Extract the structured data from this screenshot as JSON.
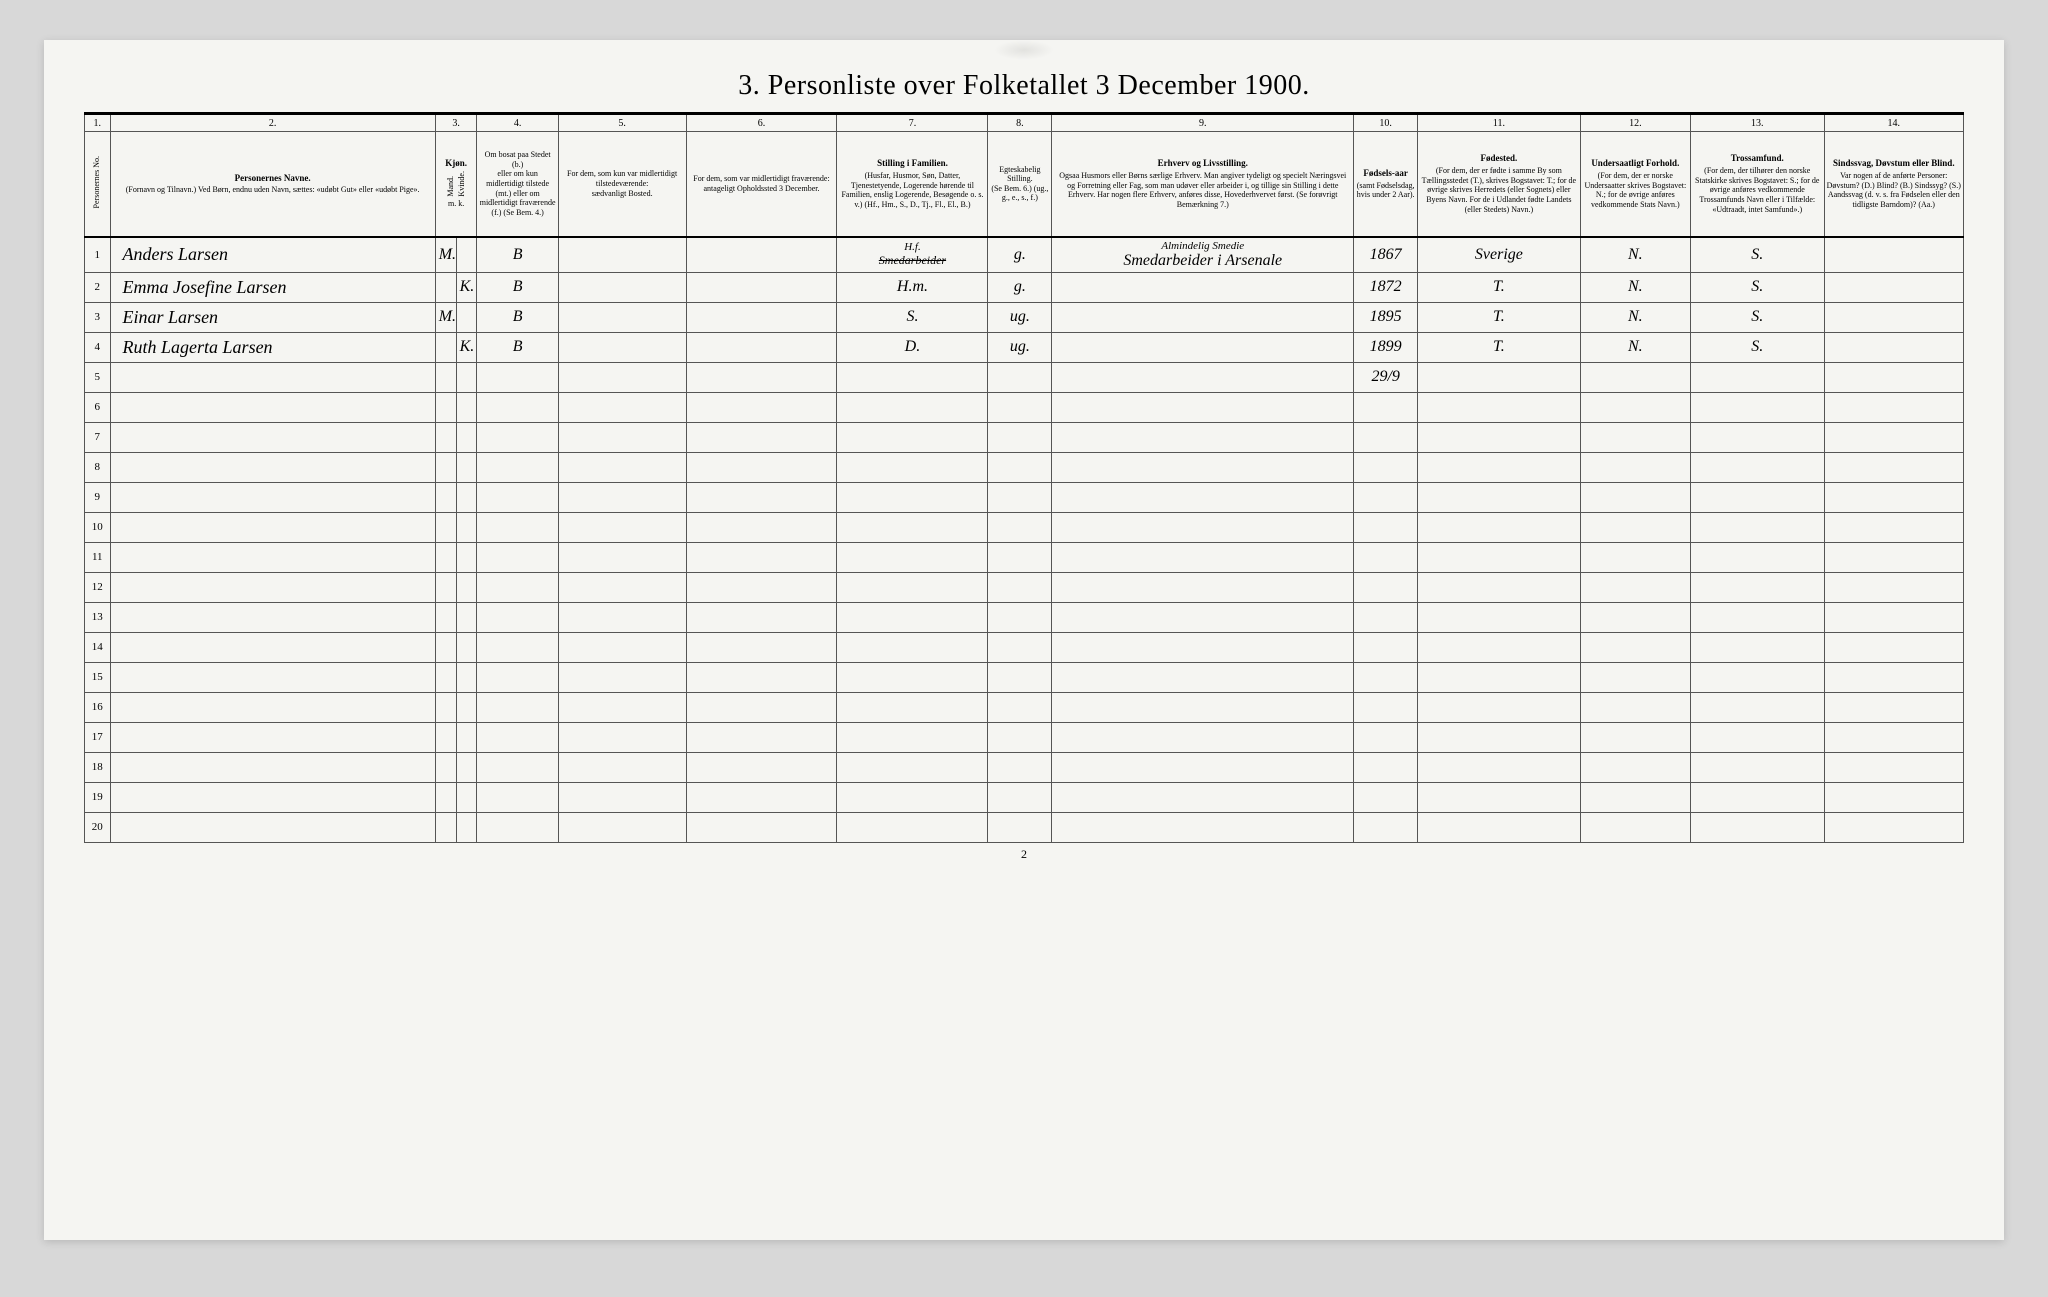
{
  "title": "3. Personliste over Folketallet 3 December 1900.",
  "page_number": "2",
  "colors": {
    "page_bg": "#f5f5f2",
    "outer_bg": "#d8d8d8",
    "border": "#555555",
    "heavy_border": "#000000",
    "text": "#222222"
  },
  "typography": {
    "title_fontsize": 28,
    "header_fontsize": 9,
    "body_fontsize": 14,
    "script_font": "cursive"
  },
  "column_numbers": [
    "1.",
    "2.",
    "3.",
    "4.",
    "5.",
    "6.",
    "7.",
    "8.",
    "9.",
    "10.",
    "11.",
    "12.",
    "13.",
    "14."
  ],
  "headers": {
    "c1": {
      "main": "Personernes No."
    },
    "c2": {
      "main": "Personernes Navne.",
      "sub": "(Fornavn og Tilnavn.)\nVed Børn, endnu uden Navn, sættes: «udøbt Gut» eller «udøbt Pige»."
    },
    "c3": {
      "main": "Kjøn.",
      "sub_a": "Mand.",
      "sub_b": "Kvinde.",
      "foot": "m. k."
    },
    "c4": {
      "main": "Om bosat paa Stedet (b.)",
      "sub": "eller om kun midlertidigt tilstede (mt.) eller om midlertidigt fraværende (f.)\n(Se Bem. 4.)"
    },
    "c5": {
      "main": "For dem, som kun var midlertidigt tilstedeværende:",
      "sub": "sædvanligt Bosted."
    },
    "c6": {
      "main": "For dem, som var midlertidigt fraværende:",
      "sub": "antageligt Opholdssted 3 December."
    },
    "c7": {
      "main": "Stilling i Familien.",
      "sub": "(Husfar, Husmor, Søn, Datter, Tjenestetyende, Logerende hørende til Familien, enslig Logerende, Besøgende o. s. v.)\n(Hf., Hm., S., D., Tj., Fl., El., B.)"
    },
    "c8": {
      "main": "Egteskabelig Stilling.",
      "sub": "(Se Bem. 6.)\n(ug., g., e., s., f.)"
    },
    "c9": {
      "main": "Erhverv og Livsstilling.",
      "sub": "Ogsaa Husmors eller Børns særlige Erhverv. Man angiver tydeligt og specielt Næringsvei og Forretning eller Fag, som man udøver eller arbeider i, og tillige sin Stilling i dette Erhverv. Har nogen flere Erhverv, anføres disse, Hovederhvervet først.\n(Se forøvrigt Bemærkning 7.)"
    },
    "c10": {
      "main": "Fødsels-aar",
      "sub": "(samt Fødselsdag, hvis under 2 Aar)."
    },
    "c11": {
      "main": "Fødested.",
      "sub": "(For dem, der er fødte i samme By som Tællingsstedet (T.), skrives Bogstavet: T.; for de øvrige skrives Herredets (eller Sognets) eller Byens Navn. For de i Udlandet fødte Landets (eller Stedets) Navn.)"
    },
    "c12": {
      "main": "Undersaatligt Forhold.",
      "sub": "(For dem, der er norske Undersaatter skrives Bogstavet: N.; for de øvrige anføres vedkommende Stats Navn.)"
    },
    "c13": {
      "main": "Trossamfund.",
      "sub": "(For dem, der tilhører den norske Statskirke skrives Bogstavet: S.; for de øvrige anføres vedkommende Trossamfunds Navn eller i Tilfælde: «Udtraadt, intet Samfund».)"
    },
    "c14": {
      "main": "Sindssvag, Døvstum eller Blind.",
      "sub": "Var nogen af de anførte Personer:\nDøvstum? (D.)\nBlind? (B.)\nSindssyg? (S.)\nAandssvag (d. v. s. fra Fødselen eller den tidligste Barndom)? (Aa.)"
    }
  },
  "rows": [
    {
      "num": "1",
      "name": "Anders Larsen",
      "sex": "M.",
      "bosat": "B",
      "stilling_strike": "Smedarbeider",
      "stilling": "H.f.",
      "egte": "g.",
      "erhverv_top": "Almindelig Smedie",
      "erhverv": "Smedarbeider i Arsenale",
      "aar": "1867",
      "fodested": "Sverige",
      "under": "N.",
      "tros": "S."
    },
    {
      "num": "2",
      "name": "Emma Josefine Larsen",
      "sex": "K.",
      "bosat": "B",
      "stilling": "H.m.",
      "egte": "g.",
      "aar": "1872",
      "fodested": "T.",
      "under": "N.",
      "tros": "S."
    },
    {
      "num": "3",
      "name": "Einar Larsen",
      "sex": "M.",
      "bosat": "B",
      "stilling": "S.",
      "egte": "ug.",
      "aar": "1895",
      "fodested": "T.",
      "under": "N.",
      "tros": "S."
    },
    {
      "num": "4",
      "name": "Ruth Lagerta Larsen",
      "sex": "K.",
      "bosat": "B",
      "stilling": "D.",
      "egte": "ug.",
      "aar": "1899",
      "fodested": "T.",
      "under": "N.",
      "tros": "S."
    },
    {
      "num": "5",
      "aar": "29/9"
    }
  ],
  "empty_row_count": 15,
  "total_rows": 20
}
